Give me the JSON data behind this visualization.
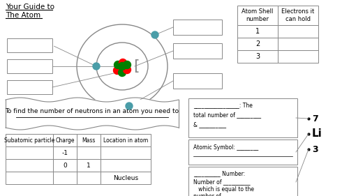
{
  "title_line1": "Your Guide to",
  "title_line2": "The Atom",
  "bg_color": "#ffffff",
  "table1_headers": [
    "Atom Shell\nnumber",
    "Electrons it\ncan hold"
  ],
  "table1_rows": [
    [
      "1",
      ""
    ],
    [
      "2",
      ""
    ],
    [
      "3",
      ""
    ]
  ],
  "table2_headers": [
    "Subatomic particle",
    "Charge",
    "Mass",
    "Location in atom"
  ],
  "table2_rows": [
    [
      "",
      "-1",
      "",
      ""
    ],
    [
      "",
      "0",
      "1",
      ""
    ],
    [
      "",
      "",
      "",
      "Nucleus"
    ]
  ],
  "neutron_text": "To find the number of neutrons in an atom you need to",
  "right_box1_lines": [
    "_________________: The",
    "total number of _________",
    "& __________"
  ],
  "right_box2_lines": [
    "Atomic Symbol: ________",
    "________"
  ],
  "right_box3_lines": [
    "__________ Number:",
    "Number of __________",
    "   which is equal to the",
    "number of __________"
  ],
  "li_symbol": "Li",
  "li_top": "7",
  "li_bottom": "3",
  "electron_color": "#4a9da8",
  "nucleus_colors": [
    "red",
    "green",
    "red",
    "green",
    "red",
    "green",
    "green"
  ],
  "line_color": "#888888",
  "box_edge_color": "#aaaaaa"
}
